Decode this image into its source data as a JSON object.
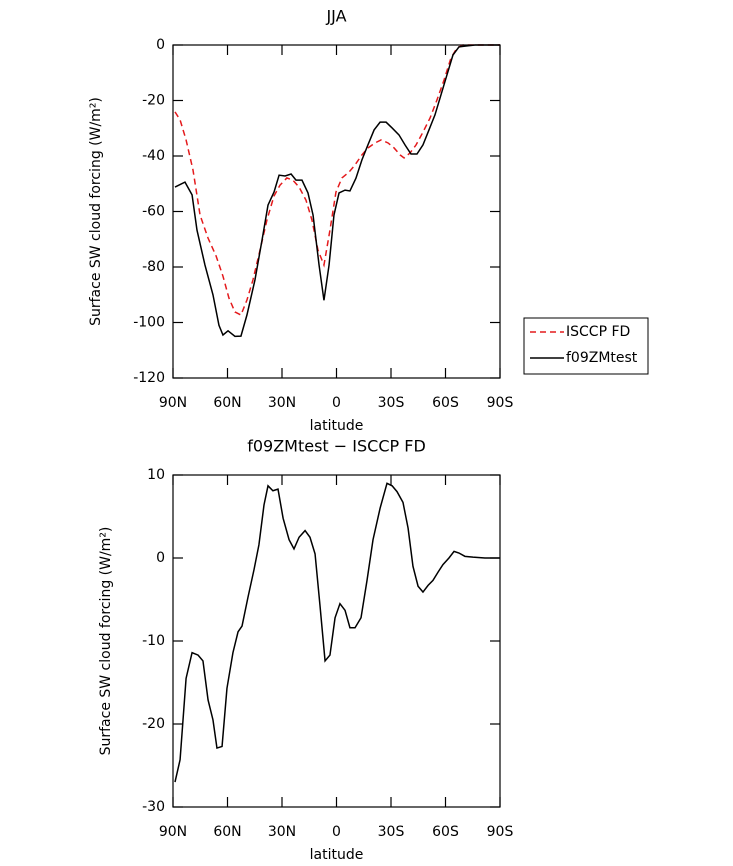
{
  "chart_data": [
    {
      "type": "line",
      "title": "JJA",
      "xlabel": "latitude",
      "ylabel": "Surface SW cloud forcing (W/m²)",
      "xlim": [
        90,
        -90
      ],
      "xticks": [
        {
          "value": 90,
          "label": "90N"
        },
        {
          "value": 60,
          "label": "60N"
        },
        {
          "value": 30,
          "label": "30N"
        },
        0,
        {
          "value": -30,
          "label": "30S"
        },
        {
          "value": -60,
          "label": "60S"
        },
        {
          "value": -90,
          "label": "90S"
        }
      ],
      "ylim": [
        -120,
        0
      ],
      "yticks": [
        0,
        -20,
        -40,
        -60,
        -80,
        -100,
        -120
      ],
      "legend": "right",
      "series": [
        {
          "name": "ISCCP FD",
          "color": "#e41a1c",
          "dash": true,
          "x": [
            88.9,
            86.1,
            82.8,
            79.0,
            75.1,
            70.7,
            66.3,
            62.5,
            59.2,
            55.9,
            52.6,
            49.3,
            46.0,
            42.1,
            38.3,
            34.4,
            31.1,
            27.3,
            24.0,
            20.6,
            16.8,
            13.5,
            10.2,
            6.9,
            3.6,
            0.3,
            -3.0,
            -6.9,
            -10.2,
            -14.0,
            -17.3,
            -21.2,
            -24.5,
            -28.4,
            -31.7,
            -35.0,
            -37.2,
            -40.5,
            -43.8,
            -47.6,
            -51.5,
            -55.3,
            -59.2,
            -63.0,
            -66.3,
            -69.6,
            -90
          ],
          "values": [
            -24.1,
            -27,
            -34.2,
            -45,
            -61.3,
            -69.6,
            -76,
            -83.3,
            -91.2,
            -96.2,
            -97.3,
            -91.9,
            -84.7,
            -73.9,
            -63.1,
            -54.4,
            -50.5,
            -47.9,
            -48.7,
            -51.2,
            -55.9,
            -63.1,
            -73.9,
            -79.3,
            -66.7,
            -53,
            -47.9,
            -45.8,
            -43.2,
            -39.6,
            -37.1,
            -35.3,
            -34.2,
            -35.3,
            -37.1,
            -39.6,
            -40.7,
            -38.9,
            -36,
            -31.4,
            -26.3,
            -19.8,
            -12.6,
            -4.7,
            -1.1,
            0,
            0
          ]
        },
        {
          "name": "f09ZMtest",
          "color": "#000000",
          "dash": false,
          "x": [
            88.9,
            83.4,
            79.5,
            76.8,
            72.4,
            68.0,
            64.7,
            62.5,
            59.7,
            55.9,
            52.6,
            49.3,
            44.9,
            41.0,
            37.7,
            34.4,
            31.6,
            28.3,
            25.0,
            22.3,
            19.0,
            15.7,
            12.9,
            9.6,
            6.9,
            4.1,
            1.4,
            -1.4,
            -4.7,
            -7.4,
            -10.7,
            -14.0,
            -17.3,
            -20.7,
            -24.0,
            -27.3,
            -30.6,
            -34.4,
            -37.7,
            -41.0,
            -44.3,
            -47.6,
            -50.9,
            -54.2,
            -57.5,
            -60.8,
            -64.1,
            -67.4,
            -70.7,
            -76.3,
            -84.5,
            -90
          ],
          "values": [
            -51.2,
            -49.4,
            -54,
            -66.7,
            -79.3,
            -90,
            -101,
            -104.5,
            -103,
            -105,
            -104.9,
            -97.3,
            -84.7,
            -70.3,
            -57.7,
            -53,
            -46.9,
            -47.2,
            -46.5,
            -48.7,
            -48.7,
            -53.3,
            -61.3,
            -79.3,
            -92,
            -79.3,
            -61.3,
            -53.3,
            -52.3,
            -52.6,
            -48,
            -41.4,
            -36,
            -30.6,
            -27.8,
            -27.8,
            -29.9,
            -32.4,
            -36,
            -39.3,
            -39.3,
            -36,
            -30.6,
            -25.2,
            -18,
            -10.8,
            -3.6,
            -0.7,
            -0.4,
            0,
            0,
            0
          ]
        }
      ]
    },
    {
      "type": "line",
      "title": "f09ZMtest − ISCCP FD",
      "xlabel": "latitude",
      "ylabel": "Surface SW cloud forcing (W/m²)",
      "xlim": [
        90,
        -90
      ],
      "xticks": [
        {
          "value": 90,
          "label": "90N"
        },
        {
          "value": 60,
          "label": "60N"
        },
        {
          "value": 30,
          "label": "30N"
        },
        0,
        {
          "value": -30,
          "label": "30S"
        },
        {
          "value": -60,
          "label": "60S"
        },
        {
          "value": -90,
          "label": "90S"
        }
      ],
      "ylim": [
        -30,
        10
      ],
      "yticks": [
        10,
        0,
        -10,
        -20,
        -30
      ],
      "series": [
        {
          "color": "#000000",
          "dash": false,
          "x": [
            88.9,
            86.1,
            82.8,
            79.5,
            76.2,
            73.5,
            70.7,
            68.0,
            65.8,
            63.0,
            60.3,
            57.0,
            54.2,
            52.0,
            48.7,
            45.4,
            42.7,
            39.9,
            37.7,
            35.0,
            32.2,
            29.4,
            26.1,
            23.4,
            20.6,
            17.3,
            14.6,
            11.8,
            9.1,
            6.3,
            3.6,
            0.8,
            -1.9,
            -4.7,
            -7.4,
            -10.2,
            -13.5,
            -16.8,
            -20.1,
            -24.0,
            -27.8,
            -30.6,
            -33.3,
            -36.6,
            -39.4,
            -42.1,
            -44.9,
            -47.6,
            -50.4,
            -53.1,
            -55.9,
            -58.6,
            -61.9,
            -64.7,
            -67.4,
            -70.7,
            -75.1,
            -81.7,
            -90
          ],
          "values": [
            -27,
            -24.3,
            -14.5,
            -11.4,
            -11.7,
            -12.4,
            -17.1,
            -19.5,
            -22.9,
            -22.7,
            -15.7,
            -11.4,
            -8.9,
            -8.2,
            -4.7,
            -1.4,
            1.6,
            6.4,
            8.7,
            8.1,
            8.3,
            4.8,
            2.2,
            1.1,
            2.5,
            3.3,
            2.5,
            0.5,
            -5.7,
            -12.4,
            -11.7,
            -7.2,
            -5.5,
            -6.3,
            -8.4,
            -8.4,
            -7.2,
            -2.7,
            2.2,
            6,
            9,
            8.7,
            8,
            6.7,
            3.6,
            -1,
            -3.4,
            -4.1,
            -3.3,
            -2.7,
            -1.7,
            -0.8,
            0,
            0.8,
            0.6,
            0.2,
            0.1,
            0,
            0
          ]
        }
      ]
    }
  ]
}
